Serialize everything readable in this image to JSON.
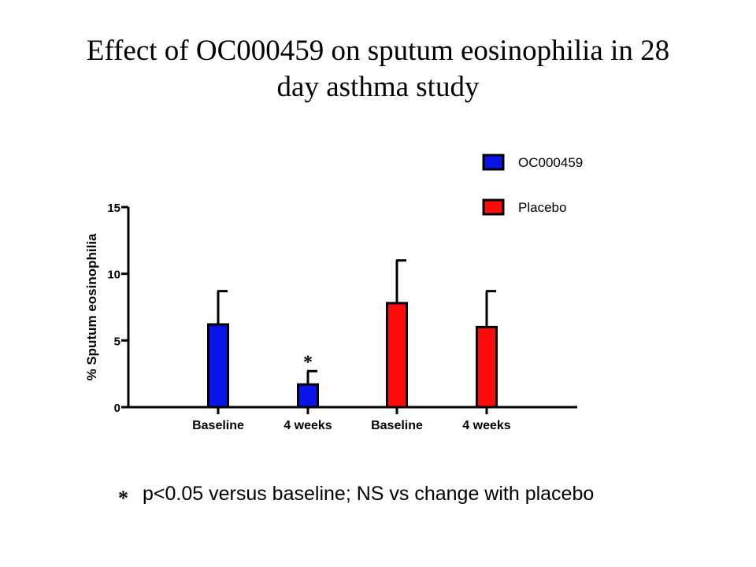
{
  "title_line1": "Effect of OC000459 on sputum eosinophilia in 28",
  "title_line2": "day asthma study",
  "chart_data": {
    "type": "bar",
    "ylabel": "% Sputum eosinophilia",
    "xlabel": "",
    "ylim": [
      0,
      15
    ],
    "yticks": [
      0,
      5,
      10,
      15
    ],
    "categories": [
      "Baseline",
      "4 weeks",
      "Baseline",
      "4 weeks"
    ],
    "bars": [
      {
        "category": "Baseline",
        "series": "OC000459",
        "value": 6.2,
        "error": 2.5,
        "color": "#0a14e6",
        "annotation": ""
      },
      {
        "category": "4 weeks",
        "series": "OC000459",
        "value": 1.7,
        "error": 1.0,
        "color": "#0a14e6",
        "annotation": "*"
      },
      {
        "category": "Baseline",
        "series": "Placebo",
        "value": 7.8,
        "error": 3.2,
        "color": "#ff0a0a",
        "annotation": ""
      },
      {
        "category": "4 weeks",
        "series": "Placebo",
        "value": 6.0,
        "error": 2.7,
        "color": "#ff0a0a",
        "annotation": ""
      }
    ],
    "legend": [
      {
        "name": "OC000459",
        "color": "#0a14e6"
      },
      {
        "name": "Placebo",
        "color": "#ff0a0a"
      }
    ],
    "legend_position": "top-right",
    "grid": false
  },
  "footnote": {
    "marker": "*",
    "text": "p<0.05 versus baseline; NS vs change with placebo"
  }
}
